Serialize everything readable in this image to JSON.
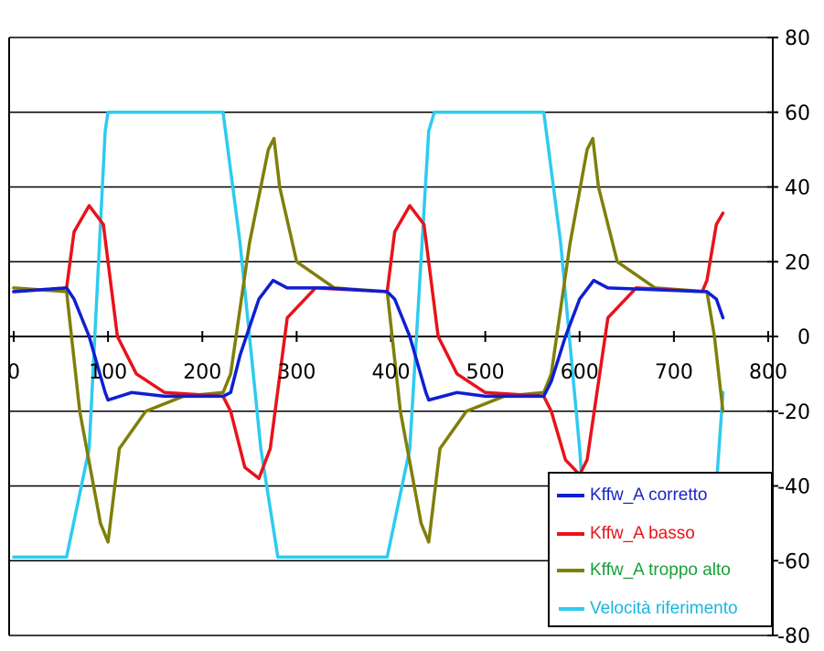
{
  "chart_data": {
    "type": "line",
    "xlim": [
      0,
      800
    ],
    "ylim": [
      -80,
      80
    ],
    "x_ticks": [
      "0",
      "100",
      "200",
      "300",
      "400",
      "500",
      "600",
      "700",
      "800"
    ],
    "y_ticks": [
      "80",
      "60",
      "40",
      "20",
      "0",
      "-20",
      "-40",
      "-60",
      "-80"
    ],
    "y_axis_side": "right",
    "grid": "horizontal",
    "legend_position": "bottom-right",
    "series": [
      {
        "name": "Velocità riferimento",
        "color": "#2ecbf0",
        "points": [
          [
            0,
            -59
          ],
          [
            56,
            -59
          ],
          [
            80,
            -30
          ],
          [
            97,
            55
          ],
          [
            100,
            60
          ],
          [
            222,
            60
          ],
          [
            240,
            25
          ],
          [
            262,
            -30
          ],
          [
            280,
            -59
          ],
          [
            396,
            -59
          ],
          [
            420,
            -30
          ],
          [
            440,
            55
          ],
          [
            446,
            60
          ],
          [
            562,
            60
          ],
          [
            580,
            25
          ],
          [
            600,
            -30
          ],
          [
            608,
            -59
          ],
          [
            740,
            -59
          ],
          [
            745,
            -40
          ],
          [
            752,
            -15
          ]
        ]
      },
      {
        "name": "Kffw_A troppo alto",
        "color": "#7f7f0a",
        "points": [
          [
            0,
            13
          ],
          [
            56,
            12
          ],
          [
            70,
            -20
          ],
          [
            92,
            -50
          ],
          [
            100,
            -55
          ],
          [
            112,
            -30
          ],
          [
            140,
            -20
          ],
          [
            180,
            -16
          ],
          [
            222,
            -15
          ],
          [
            230,
            -10
          ],
          [
            250,
            25
          ],
          [
            270,
            50
          ],
          [
            276,
            53
          ],
          [
            282,
            40
          ],
          [
            300,
            20
          ],
          [
            340,
            13
          ],
          [
            396,
            12
          ],
          [
            410,
            -20
          ],
          [
            432,
            -50
          ],
          [
            440,
            -55
          ],
          [
            452,
            -30
          ],
          [
            480,
            -20
          ],
          [
            520,
            -16
          ],
          [
            562,
            -15
          ],
          [
            570,
            -10
          ],
          [
            590,
            25
          ],
          [
            608,
            50
          ],
          [
            614,
            53
          ],
          [
            620,
            40
          ],
          [
            640,
            20
          ],
          [
            680,
            13
          ],
          [
            735,
            12
          ],
          [
            743,
            0
          ],
          [
            752,
            -20
          ]
        ]
      },
      {
        "name": "Kffw_A basso",
        "color": "#e8131a",
        "points": [
          [
            0,
            12
          ],
          [
            56,
            13
          ],
          [
            64,
            28
          ],
          [
            80,
            35
          ],
          [
            95,
            30
          ],
          [
            110,
            0
          ],
          [
            130,
            -10
          ],
          [
            160,
            -15
          ],
          [
            222,
            -16
          ],
          [
            230,
            -20
          ],
          [
            245,
            -35
          ],
          [
            260,
            -38
          ],
          [
            272,
            -30
          ],
          [
            290,
            5
          ],
          [
            320,
            13
          ],
          [
            396,
            12
          ],
          [
            404,
            28
          ],
          [
            420,
            35
          ],
          [
            435,
            30
          ],
          [
            450,
            0
          ],
          [
            470,
            -10
          ],
          [
            500,
            -15
          ],
          [
            562,
            -16
          ],
          [
            570,
            -20
          ],
          [
            585,
            -33
          ],
          [
            600,
            -37
          ],
          [
            608,
            -33
          ],
          [
            630,
            5
          ],
          [
            660,
            13
          ],
          [
            730,
            12
          ],
          [
            735,
            15
          ],
          [
            745,
            30
          ],
          [
            752,
            33
          ]
        ]
      },
      {
        "name": "Kffw_A corretto",
        "color": "#0f1fd0",
        "points": [
          [
            0,
            12
          ],
          [
            56,
            13
          ],
          [
            64,
            10
          ],
          [
            80,
            0
          ],
          [
            97,
            -15
          ],
          [
            100,
            -17
          ],
          [
            125,
            -15
          ],
          [
            160,
            -16
          ],
          [
            222,
            -16
          ],
          [
            230,
            -15
          ],
          [
            240,
            -5
          ],
          [
            260,
            10
          ],
          [
            275,
            15
          ],
          [
            290,
            13
          ],
          [
            330,
            13
          ],
          [
            396,
            12
          ],
          [
            404,
            10
          ],
          [
            420,
            0
          ],
          [
            437,
            -15
          ],
          [
            440,
            -17
          ],
          [
            470,
            -15
          ],
          [
            500,
            -16
          ],
          [
            562,
            -16
          ],
          [
            570,
            -12
          ],
          [
            585,
            0
          ],
          [
            600,
            10
          ],
          [
            615,
            15
          ],
          [
            630,
            13
          ],
          [
            735,
            12
          ],
          [
            745,
            10
          ],
          [
            752,
            5
          ]
        ]
      }
    ],
    "legend": [
      {
        "label": "Kffw_A corretto",
        "color": "#0f1fd0",
        "text_color": "#1a24c8"
      },
      {
        "label": "Kffw_A basso",
        "color": "#e8131a",
        "text_color": "#e8131a"
      },
      {
        "label": "Kffw_A troppo alto",
        "color": "#7f7f0a",
        "text_color": "#1a9e3a"
      },
      {
        "label": "Velocità riferimento",
        "color": "#2ecbf0",
        "text_color": "#1ab6e0"
      }
    ]
  }
}
